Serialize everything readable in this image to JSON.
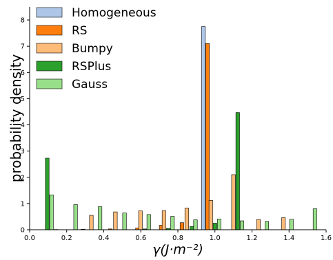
{
  "chart_data": {
    "type": "bar",
    "xlabel": "γ(J·m⁻²)",
    "ylabel": "probability density",
    "xlim": [
      0.0,
      1.6
    ],
    "ylim": [
      0,
      8.5
    ],
    "xticks": [
      "0.0",
      "0.2",
      "0.4",
      "0.6",
      "0.8",
      "1.0",
      "1.2",
      "1.4",
      "1.6"
    ],
    "yticks": [
      "0",
      "1",
      "2",
      "3",
      "4",
      "5",
      "6",
      "7",
      "8"
    ],
    "legend_position": "top-left",
    "grid": false,
    "series": [
      {
        "name": "Homogeneous",
        "color": "#aec7e8",
        "bars": [
          {
            "x": 0.928,
            "width": 0.02,
            "value": 7.75
          }
        ]
      },
      {
        "name": "RS",
        "color": "#ff7f0e",
        "bars": [
          {
            "x": 0.132,
            "width": 0.02,
            "value": 0.01
          },
          {
            "x": 0.278,
            "width": 0.02,
            "value": 0.02
          },
          {
            "x": 0.425,
            "width": 0.02,
            "value": 0.03
          },
          {
            "x": 0.572,
            "width": 0.02,
            "value": 0.07
          },
          {
            "x": 0.7,
            "width": 0.02,
            "value": 0.17
          },
          {
            "x": 0.812,
            "width": 0.02,
            "value": 0.27
          },
          {
            "x": 0.95,
            "width": 0.02,
            "value": 7.1
          }
        ]
      },
      {
        "name": "Bumpy",
        "color": "#ffbb78",
        "bars": [
          {
            "x": 0.323,
            "width": 0.02,
            "value": 0.55
          },
          {
            "x": 0.453,
            "width": 0.02,
            "value": 0.68
          },
          {
            "x": 0.588,
            "width": 0.02,
            "value": 0.72
          },
          {
            "x": 0.715,
            "width": 0.02,
            "value": 0.73
          },
          {
            "x": 0.838,
            "width": 0.02,
            "value": 0.83
          },
          {
            "x": 0.968,
            "width": 0.02,
            "value": 1.12
          },
          {
            "x": 1.09,
            "width": 0.02,
            "value": 2.1
          },
          {
            "x": 1.225,
            "width": 0.02,
            "value": 0.39
          },
          {
            "x": 1.36,
            "width": 0.02,
            "value": 0.46
          }
        ]
      },
      {
        "name": "RSPlus",
        "color": "#2ca02c",
        "bars": [
          {
            "x": 0.085,
            "width": 0.02,
            "value": 2.73
          },
          {
            "x": 0.611,
            "width": 0.02,
            "value": 0.03
          },
          {
            "x": 0.738,
            "width": 0.02,
            "value": 0.05
          },
          {
            "x": 0.865,
            "width": 0.02,
            "value": 0.12
          },
          {
            "x": 0.99,
            "width": 0.02,
            "value": 0.25
          },
          {
            "x": 1.113,
            "width": 0.02,
            "value": 4.47
          }
        ]
      },
      {
        "name": "Gauss",
        "color": "#98df8a",
        "bars": [
          {
            "x": 0.108,
            "width": 0.02,
            "value": 1.33
          },
          {
            "x": 0.238,
            "width": 0.02,
            "value": 0.96
          },
          {
            "x": 0.37,
            "width": 0.02,
            "value": 0.88
          },
          {
            "x": 0.502,
            "width": 0.02,
            "value": 0.64
          },
          {
            "x": 0.633,
            "width": 0.02,
            "value": 0.58
          },
          {
            "x": 0.761,
            "width": 0.02,
            "value": 0.51
          },
          {
            "x": 0.885,
            "width": 0.02,
            "value": 0.38
          },
          {
            "x": 1.013,
            "width": 0.02,
            "value": 0.41
          },
          {
            "x": 1.136,
            "width": 0.02,
            "value": 0.34
          },
          {
            "x": 1.27,
            "width": 0.02,
            "value": 0.32
          },
          {
            "x": 1.403,
            "width": 0.02,
            "value": 0.4
          },
          {
            "x": 1.53,
            "width": 0.02,
            "value": 0.8
          }
        ]
      }
    ]
  }
}
